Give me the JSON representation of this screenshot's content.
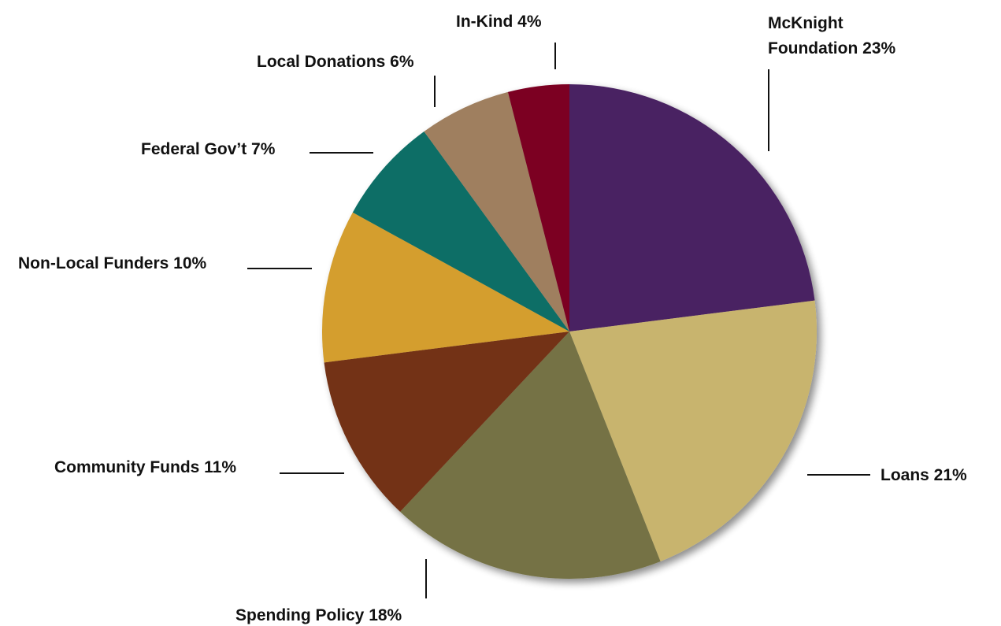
{
  "chart_data": {
    "type": "pie",
    "title": "",
    "slices": [
      {
        "label": "McKnight Foundation 23%",
        "value": 23,
        "color": "#4a2262"
      },
      {
        "label": "Loans 21%",
        "value": 21,
        "color": "#c8b46e"
      },
      {
        "label": "Spending Policy 18%",
        "value": 18,
        "color": "#747244"
      },
      {
        "label": "Community Funds 11%",
        "value": 11,
        "color": "#733317"
      },
      {
        "label": "Non-Local Funders 10%",
        "value": 10,
        "color": "#d49e2e"
      },
      {
        "label": "Federal Gov’t 7%",
        "value": 7,
        "color": "#086e66"
      },
      {
        "label": "Local Donations 6%",
        "value": 6,
        "color": "#9f7f5e"
      },
      {
        "label": "In-Kind 4%",
        "value": 4,
        "color": "#7b0124"
      }
    ],
    "start_angle": "12 o'clock",
    "direction": "clockwise",
    "legend": "none",
    "labels": "outside with leader lines"
  }
}
